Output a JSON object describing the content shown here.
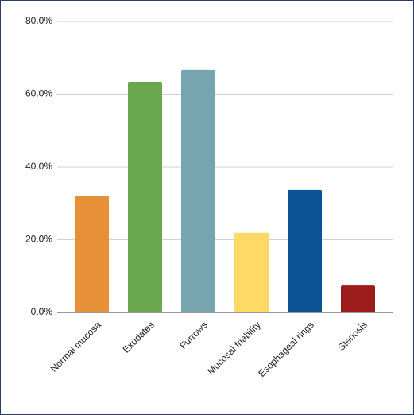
{
  "chart_data": {
    "type": "bar",
    "categories": [
      "Normal mucosa",
      "Exudates",
      "Furrows",
      "Mucosal friability",
      "Esophageal rings",
      "Stenosis"
    ],
    "values": [
      32.1,
      63.4,
      66.7,
      21.9,
      33.7,
      7.4
    ],
    "colors": [
      "#e69138",
      "#6aa84f",
      "#76a5af",
      "#ffd966",
      "#0b5394",
      "#9c1c1c"
    ],
    "ylim": [
      0,
      80
    ],
    "yticks": [
      {
        "value": 0,
        "label": "0.0%"
      },
      {
        "value": 20,
        "label": "20.0%"
      },
      {
        "value": 40,
        "label": "40.0%"
      },
      {
        "value": 60,
        "label": "60.0%"
      },
      {
        "value": 80,
        "label": "80.0%"
      }
    ],
    "grid": true
  }
}
